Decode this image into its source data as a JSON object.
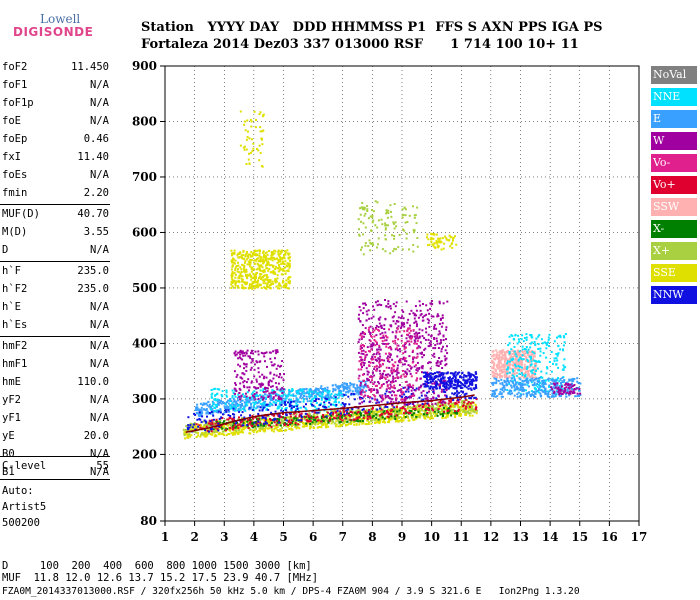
{
  "logo": {
    "line1": "Lowell",
    "line2": "DIGISONDE"
  },
  "header": {
    "row1": "Station   YYYY DAY   DDD HHMMSS P1  FFS S AXN PPS IGA PS",
    "row2": "Fortaleza 2014 Dez03 337 013000 RSF      1 714 100 10+ 11"
  },
  "params": [
    {
      "name": "foF2",
      "value": "11.450"
    },
    {
      "name": "foF1",
      "value": "N/A"
    },
    {
      "name": "foF1p",
      "value": "N/A"
    },
    {
      "name": "foE",
      "value": "N/A"
    },
    {
      "name": "foEp",
      "value": "0.46"
    },
    {
      "name": "fxI",
      "value": "11.40"
    },
    {
      "name": "foEs",
      "value": "N/A"
    },
    {
      "name": "fmin",
      "value": "2.20"
    },
    {
      "name": "MUF(D)",
      "value": "40.70"
    },
    {
      "name": "M(D)",
      "value": "3.55"
    },
    {
      "name": "D",
      "value": "N/A"
    },
    {
      "name": "h`F",
      "value": "235.0"
    },
    {
      "name": "h`F2",
      "value": "235.0"
    },
    {
      "name": "h`E",
      "value": "N/A"
    },
    {
      "name": "h`Es",
      "value": "N/A"
    },
    {
      "name": "hmF2",
      "value": "N/A"
    },
    {
      "name": "hmF1",
      "value": "N/A"
    },
    {
      "name": "hmE",
      "value": "110.0"
    },
    {
      "name": "yF2",
      "value": "N/A"
    },
    {
      "name": "yF1",
      "value": "N/A"
    },
    {
      "name": "yE",
      "value": "20.0"
    },
    {
      "name": "B0",
      "value": "N/A"
    },
    {
      "name": "B1",
      "value": "N/A"
    },
    {
      "name": "C-level",
      "value": "55"
    }
  ],
  "auto": {
    "line1": "Auto:",
    "line2": "Artist5",
    "line3": "500200"
  },
  "bottom": {
    "d_row": "D     100  200  400  600  800 1000 1500 3000 [km]",
    "muf_row": "MUF  11.8 12.0 12.6 13.7 15.2 17.5 23.9 40.7 [MHz]",
    "file_row": "FZA0M_2014337013000.RSF / 320fx256h 50 kHz 5.0 km / DPS-4 FZA0M 904 / 3.9 S 321.6 E   Ion2Png 1.3.20"
  },
  "legend": [
    {
      "label": "NoVal",
      "color": "#808080"
    },
    {
      "label": "NNE",
      "color": "#00e0ff"
    },
    {
      "label": "E",
      "color": "#3aa0ff"
    },
    {
      "label": "W",
      "color": "#a000a0"
    },
    {
      "label": "Vo-",
      "color": "#e0208c"
    },
    {
      "label": "Vo+",
      "color": "#e00030"
    },
    {
      "label": "SSW",
      "color": "#ffb0b0"
    },
    {
      "label": "X-",
      "color": "#008000"
    },
    {
      "label": "X+",
      "color": "#a8d040"
    },
    {
      "label": "SSE",
      "color": "#e0e000"
    },
    {
      "label": "NNW",
      "color": "#1010e0"
    }
  ],
  "chart_data": {
    "type": "scatter",
    "xlim": [
      1,
      17
    ],
    "ylim": [
      80,
      900
    ],
    "x_ticks": [
      1,
      2,
      3,
      4,
      5,
      6,
      7,
      8,
      9,
      10,
      11,
      12,
      13,
      14,
      15,
      16,
      17
    ],
    "y_ticks": [
      80,
      200,
      300,
      400,
      500,
      600,
      700,
      800,
      900
    ],
    "grid": true,
    "trace": {
      "x": [
        1.7,
        2.0,
        2.5,
        3.0,
        3.5,
        4.0,
        4.5,
        5.0,
        5.5,
        6.0,
        7.0,
        8.0,
        9.0,
        10.0,
        10.5,
        11.0,
        11.45
      ],
      "y": [
        240,
        243,
        248,
        255,
        262,
        268,
        272,
        275,
        277,
        279,
        283,
        288,
        293,
        297,
        300,
        303,
        307
      ]
    },
    "clusters": [
      {
        "name": "SSE",
        "x": [
          1.6,
          11.5
        ],
        "y": [
          230,
          290
        ],
        "count": 900
      },
      {
        "name": "X+",
        "x": [
          1.6,
          11.5
        ],
        "y": [
          235,
          295
        ],
        "count": 500
      },
      {
        "name": "X-",
        "x": [
          2.5,
          11.0
        ],
        "y": [
          245,
          285
        ],
        "count": 220
      },
      {
        "name": "Vo+",
        "x": [
          2.0,
          11.5
        ],
        "y": [
          240,
          300
        ],
        "count": 300
      },
      {
        "name": "E",
        "x": [
          2.0,
          7.8
        ],
        "y": [
          270,
          330
        ],
        "count": 500
      },
      {
        "name": "NNE",
        "x": [
          2.5,
          7.0
        ],
        "y": [
          280,
          320
        ],
        "count": 260
      },
      {
        "name": "NNW",
        "x": [
          1.7,
          11.5
        ],
        "y": [
          238,
          330
        ],
        "count": 300
      },
      {
        "name": "W",
        "x": [
          3.3,
          5.0
        ],
        "y": [
          300,
          390
        ],
        "count": 200
      },
      {
        "name": "W",
        "x": [
          7.5,
          10.5
        ],
        "y": [
          290,
          480
        ],
        "count": 600
      },
      {
        "name": "Vo-",
        "x": [
          7.5,
          9.5
        ],
        "y": [
          300,
          430
        ],
        "count": 200
      },
      {
        "name": "NNW",
        "x": [
          9.7,
          11.5
        ],
        "y": [
          320,
          350
        ],
        "count": 250
      },
      {
        "name": "SSE",
        "x": [
          3.2,
          5.2
        ],
        "y": [
          500,
          570
        ],
        "count": 500
      },
      {
        "name": "SSE",
        "x": [
          3.5,
          4.3
        ],
        "y": [
          720,
          830
        ],
        "count": 50
      },
      {
        "name": "X+",
        "x": [
          7.5,
          9.5
        ],
        "y": [
          560,
          660
        ],
        "count": 120
      },
      {
        "name": "SSE",
        "x": [
          9.8,
          10.8
        ],
        "y": [
          570,
          600
        ],
        "count": 60
      },
      {
        "name": "SSW",
        "x": [
          12.0,
          13.5
        ],
        "y": [
          340,
          390
        ],
        "count": 400
      },
      {
        "name": "NNE",
        "x": [
          12.5,
          14.5
        ],
        "y": [
          310,
          420
        ],
        "count": 250
      },
      {
        "name": "E",
        "x": [
          12.0,
          15.0
        ],
        "y": [
          305,
          340
        ],
        "count": 300
      },
      {
        "name": "W",
        "x": [
          14.0,
          15.0
        ],
        "y": [
          310,
          330
        ],
        "count": 60
      }
    ]
  }
}
